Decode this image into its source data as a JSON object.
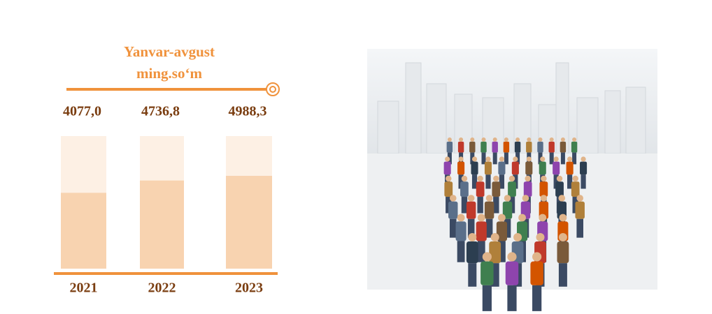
{
  "chart_data": {
    "type": "bar",
    "title": "Yanvar-avgust",
    "subtitle": "ming.so‘m",
    "categories": [
      "2021",
      "2022",
      "2023"
    ],
    "values": [
      4077.0,
      4736.8,
      4988.3
    ],
    "value_labels": [
      "4077,0",
      "4736,8",
      "4988,3"
    ],
    "color": "#f8d3b0"
  }
}
